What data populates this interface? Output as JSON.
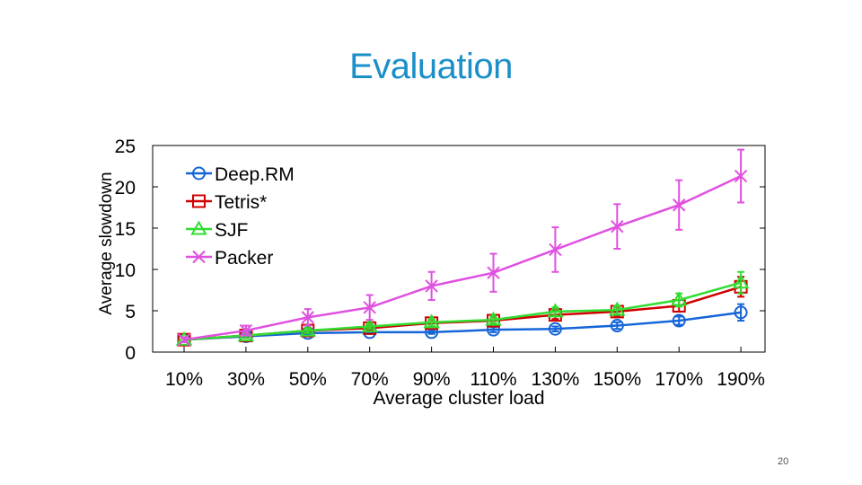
{
  "slide": {
    "title": "Evaluation",
    "page_number": "20"
  },
  "chart_data": {
    "type": "line",
    "title": "",
    "xlabel": "Average cluster load",
    "ylabel": "Average slowdown",
    "categories": [
      "10%",
      "30%",
      "50%",
      "70%",
      "90%",
      "110%",
      "130%",
      "150%",
      "170%",
      "190%"
    ],
    "ylim": [
      0,
      25
    ],
    "yticks": [
      0,
      5,
      10,
      15,
      20,
      25
    ],
    "legend_position": "top-left",
    "grid": false,
    "series": [
      {
        "name": "Deep.RM",
        "color": "#1565d8",
        "marker": "circle",
        "values": [
          1.5,
          1.9,
          2.3,
          2.4,
          2.4,
          2.7,
          2.8,
          3.2,
          3.8,
          4.8
        ],
        "errors": [
          0.2,
          0.2,
          0.2,
          0.2,
          0.2,
          0.3,
          0.3,
          0.4,
          0.5,
          1.0
        ]
      },
      {
        "name": "Tetris*",
        "color": "#d00000",
        "marker": "square",
        "values": [
          1.5,
          2.0,
          2.6,
          2.9,
          3.5,
          3.8,
          4.5,
          4.9,
          5.6,
          7.9
        ],
        "errors": [
          0.2,
          0.3,
          0.3,
          0.3,
          0.4,
          0.4,
          0.5,
          0.5,
          0.7,
          1.2
        ]
      },
      {
        "name": "SJF",
        "color": "#30dd30",
        "marker": "triangle",
        "values": [
          1.5,
          2.0,
          2.6,
          3.1,
          3.6,
          3.9,
          4.9,
          5.1,
          6.3,
          8.4
        ],
        "errors": [
          0.2,
          0.3,
          0.3,
          0.3,
          0.4,
          0.4,
          0.5,
          0.5,
          0.8,
          1.3
        ]
      },
      {
        "name": "Packer",
        "color": "#e050e0",
        "marker": "x",
        "values": [
          1.5,
          2.6,
          4.2,
          5.4,
          8.0,
          9.6,
          12.4,
          15.2,
          17.8,
          21.3
        ],
        "errors": [
          0.3,
          0.6,
          1.0,
          1.5,
          1.7,
          2.3,
          2.7,
          2.7,
          3.0,
          3.2
        ]
      }
    ]
  }
}
